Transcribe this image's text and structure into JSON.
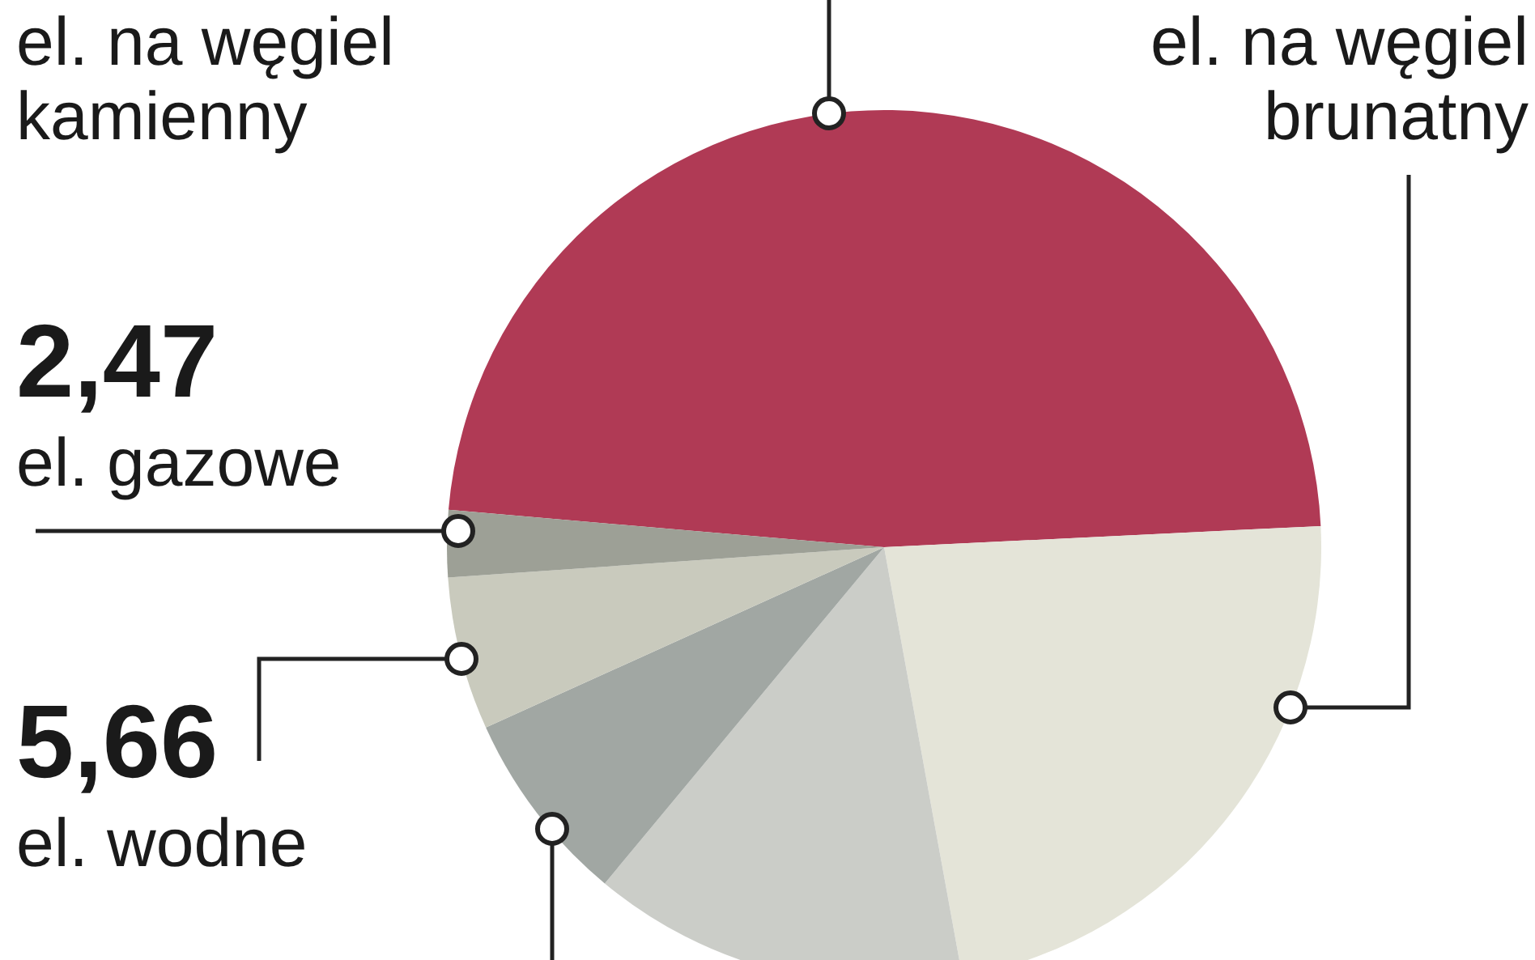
{
  "chart_data": {
    "type": "pie",
    "categories": [
      "el. na węgiel kamienny",
      "el. na węgiel brunatny",
      null,
      null,
      "el. wodne",
      "el. gazowe"
    ],
    "values": [
      47.87,
      22.9,
      13.9,
      7.2,
      5.66,
      2.47
    ],
    "colors": [
      "#b03a55",
      "#e4e4d8",
      "#cbcdc8",
      "#a1a7a3",
      "#c9cabd",
      "#9da096"
    ],
    "value_labels": [
      null,
      null,
      null,
      null,
      "5,66",
      "2,47"
    ]
  }
}
